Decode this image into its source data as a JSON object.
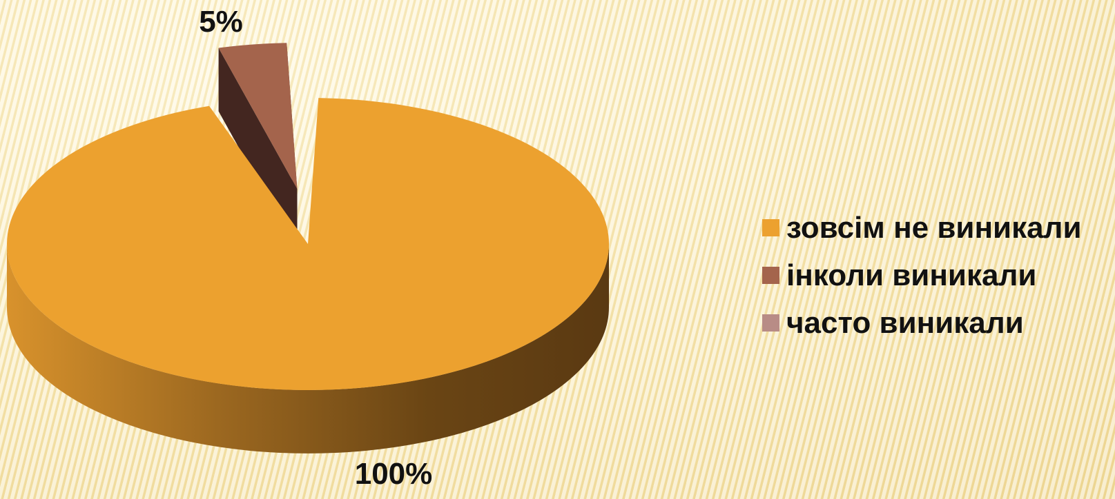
{
  "chart_data": {
    "type": "pie",
    "variant": "3d-exploded",
    "title": "",
    "categories": [
      "зовсім не виникали",
      "інколи виникали",
      "часто виникали"
    ],
    "values": [
      100,
      5,
      0
    ],
    "data_labels": [
      "100%",
      "5%",
      ""
    ],
    "colors": [
      "#ECA12F",
      "#A4644C",
      "#B88C86"
    ],
    "side_colors": [
      "#9A6420",
      "#432620",
      "#5a403d"
    ],
    "legend_position": "right",
    "exploded": [
      false,
      true,
      false
    ]
  }
}
